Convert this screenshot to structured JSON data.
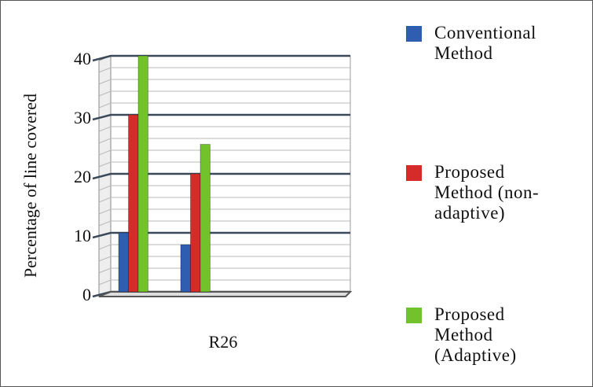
{
  "chart_data": {
    "type": "bar",
    "ylabel": "Percentage of line covered",
    "xlabel": "R26",
    "categories": [
      null,
      null
    ],
    "series": [
      {
        "name": "Conventional Method",
        "color": "#2f5eb0",
        "values": [
          10,
          8
        ]
      },
      {
        "name": "Proposed Method (non-adaptive)",
        "color": "#d62b2b",
        "values": [
          30,
          20
        ]
      },
      {
        "name": "Proposed Method (Adaptive)",
        "color": "#72c22c",
        "values": [
          40,
          25
        ]
      }
    ],
    "ylim": [
      0,
      40
    ],
    "yticks": [
      0,
      10,
      20,
      30,
      40
    ],
    "grid": true
  }
}
